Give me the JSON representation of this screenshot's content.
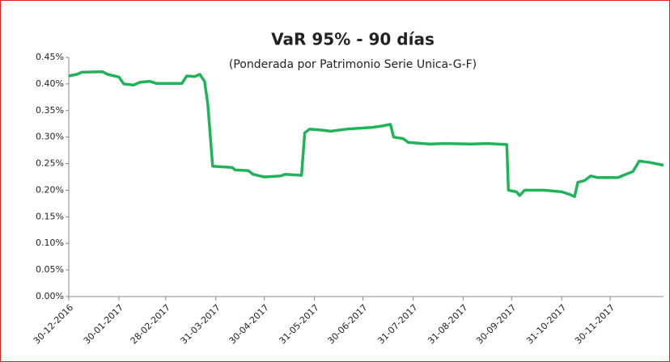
{
  "chart_data": {
    "type": "line",
    "title": "VaR 95% - 90 días",
    "subtitle": "(Ponderada por Patrimonio Serie Unica-G-F)",
    "x": [
      "30-12-2016",
      "04-01-2017",
      "07-01-2017",
      "20-01-2017",
      "23-01-2017",
      "30-01-2017",
      "02-02-2017",
      "08-02-2017",
      "12-02-2017",
      "18-02-2017",
      "22-02-2017",
      "10-03-2017",
      "13-03-2017",
      "18-03-2017",
      "21-03-2017",
      "24-03-2017",
      "26-03-2017",
      "29-03-2017",
      "10-04-2017",
      "12-04-2017",
      "20-04-2017",
      "23-04-2017",
      "30-04-2017",
      "10-05-2017",
      "13-05-2017",
      "23-05-2017",
      "25-05-2017",
      "28-05-2017",
      "05-06-2017",
      "10-06-2017",
      "20-06-2017",
      "05-07-2017",
      "12-07-2017",
      "17-07-2017",
      "19-07-2017",
      "25-07-2017",
      "28-07-2017",
      "10-08-2017",
      "20-08-2017",
      "05-09-2017",
      "15-09-2017",
      "27-09-2017",
      "28-09-2017",
      "03-10-2017",
      "05-10-2017",
      "08-10-2017",
      "20-10-2017",
      "31-10-2017",
      "05-11-2017",
      "08-11-2017",
      "10-11-2017",
      "14-11-2017",
      "18-11-2017",
      "22-11-2017",
      "05-12-2017",
      "08-12-2017",
      "14-12-2017",
      "18-12-2017",
      "25-12-2017",
      "02-01-2018"
    ],
    "series": [
      {
        "name": "VaR",
        "color": "#1fb45a",
        "values": [
          0.415,
          0.418,
          0.422,
          0.423,
          0.418,
          0.413,
          0.4,
          0.398,
          0.403,
          0.405,
          0.401,
          0.401,
          0.415,
          0.414,
          0.418,
          0.405,
          0.362,
          0.245,
          0.243,
          0.238,
          0.237,
          0.23,
          0.225,
          0.227,
          0.23,
          0.228,
          0.308,
          0.315,
          0.313,
          0.311,
          0.315,
          0.318,
          0.321,
          0.324,
          0.3,
          0.297,
          0.29,
          0.287,
          0.288,
          0.287,
          0.288,
          0.286,
          0.2,
          0.197,
          0.19,
          0.2,
          0.2,
          0.197,
          0.192,
          0.188,
          0.215,
          0.218,
          0.227,
          0.224,
          0.224,
          0.228,
          0.235,
          0.255,
          0.252,
          0.247
        ]
      }
    ],
    "xlim": [
      "30-12-2016",
      "02-01-2018"
    ],
    "xticks": [
      "30-12-2016",
      "30-01-2017",
      "28-02-2017",
      "31-03-2017",
      "30-04-2017",
      "31-05-2017",
      "30-06-2017",
      "31-07-2017",
      "31-08-2017",
      "30-09-2017",
      "31-10-2017",
      "30-11-2017"
    ],
    "ylim": [
      0,
      0.45
    ],
    "yticks": [
      {
        "value": 0,
        "label": "0.00%"
      },
      {
        "value": 0.05,
        "label": "0.05%"
      },
      {
        "value": 0.1,
        "label": "0.10%"
      },
      {
        "value": 0.15,
        "label": "0.15%"
      },
      {
        "value": 0.2,
        "label": "0.20%"
      },
      {
        "value": 0.25,
        "label": "0.25%"
      },
      {
        "value": 0.3,
        "label": "0.30%"
      },
      {
        "value": 0.35,
        "label": "0.35%"
      },
      {
        "value": 0.4,
        "label": "0.40%"
      },
      {
        "value": 0.45,
        "label": "0.45%"
      }
    ],
    "grid": false
  }
}
